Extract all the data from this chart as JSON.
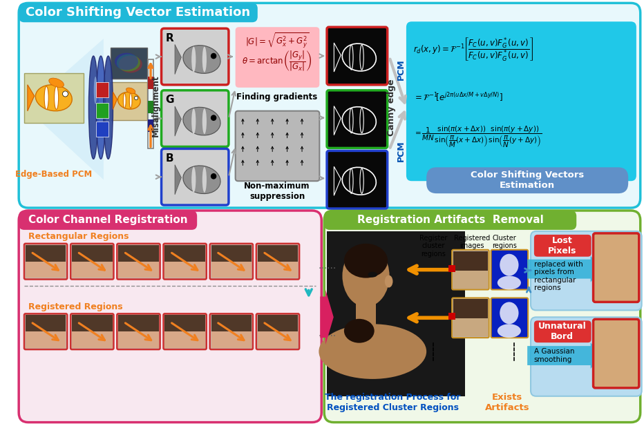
{
  "top_title": "Color Shifting Vector Estimation",
  "bottom_left_title": "Color Channel Registration",
  "bottom_right_title": "Registration Artifacts  Removal",
  "edge_pcm_label": "Edge-Based PCM",
  "misalignment_label": "Misalignment",
  "finding_gradients": "Finding gradients",
  "non_max": "Non-maximum\nsuppression",
  "canny_edge": "Canny edge",
  "pcm1": "PCM",
  "pcm2": "PCM",
  "csv_label": "Color Shifting Vectors\nEstimation",
  "rect_regions_label": "Rectangular Regions",
  "reg_regions_label": "Registered Regions",
  "reg_cluster_label": "Register\ncluster\nregions",
  "reg_images_label": "Registered\nimages",
  "cluster_label": "Cluster\nregions",
  "lost_pixels": "Lost\nPixels",
  "unnatural_bord": "Unnatural\nBord",
  "exists_artifacts": "Exists\nArtifacts",
  "replaced_text": "replaced with\npixels from\nrectangular\nregions",
  "gaussian_text": "A Gaussian\nsmoothing",
  "reg_process_label": "The registration Process for\nRegistered Cluster Regions",
  "top_bg": "#E8F8FC",
  "top_border": "#20C0D8",
  "top_title_bg": "#20B8D8",
  "bot_left_bg": "#F8E8F0",
  "bot_left_border": "#D83070",
  "bot_left_title_bg": "#D83070",
  "bot_right_bg": "#F0F8E8",
  "bot_right_border": "#70B030",
  "bot_right_title_bg": "#70B030",
  "formula_bg": "#20C8E8",
  "csv_btn_bg": "#6090C8",
  "orange": "#F08020",
  "red_ch": "#CC2020",
  "green_ch": "#20AA20",
  "blue_ch": "#2040CC",
  "pink_bg": "#FFB8C0",
  "gray_bg": "#B8B8B8"
}
